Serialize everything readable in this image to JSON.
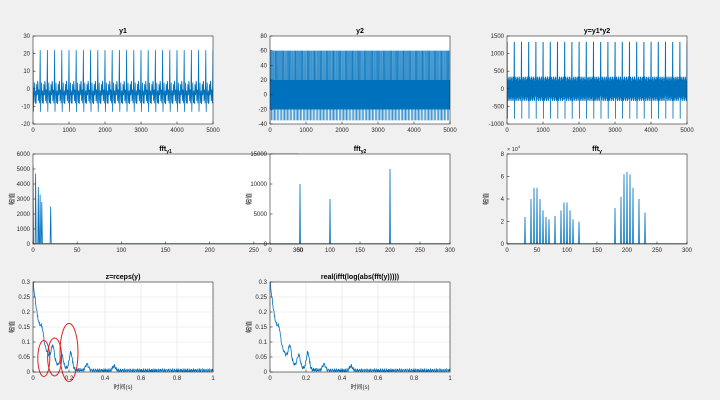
{
  "figure": {
    "background": "#f0f0f0",
    "line_color": "#0072bd",
    "highlight_color": "#e02020",
    "grid_color": "#e3e3e3"
  },
  "chart_data": [
    {
      "id": "y1",
      "type": "line",
      "title": "y1",
      "title_sub": "",
      "xlim": [
        0,
        5000
      ],
      "ylim": [
        -20,
        30
      ],
      "xticks": [
        0,
        1000,
        2000,
        3000,
        4000,
        5000
      ],
      "yticks": [
        -20,
        -10,
        0,
        10,
        20,
        30
      ],
      "ylabel": "",
      "xlabel": "",
      "grid": false,
      "signal": {
        "kind": "periodic_wave",
        "period": 200,
        "max": 22,
        "min": -13,
        "ripple": 4
      }
    },
    {
      "id": "y2",
      "type": "line",
      "title": "y2",
      "title_sub": "",
      "xlim": [
        0,
        5000
      ],
      "ylim": [
        -40,
        80
      ],
      "xticks": [
        0,
        1000,
        2000,
        3000,
        4000,
        5000
      ],
      "yticks": [
        -40,
        -20,
        0,
        20,
        40,
        60,
        80
      ],
      "ylabel": "",
      "xlabel": "",
      "grid": false,
      "signal": {
        "kind": "dense_band",
        "max": 60,
        "min": -35,
        "inner_max": 20,
        "inner_min": -20
      }
    },
    {
      "id": "y_product",
      "type": "line",
      "title": "y=y1*y2",
      "title_sub": "",
      "xlim": [
        0,
        5000
      ],
      "ylim": [
        -1000,
        1500
      ],
      "xticks": [
        0,
        1000,
        2000,
        3000,
        4000,
        5000
      ],
      "yticks": [
        -1000,
        -500,
        0,
        500,
        1000,
        1500
      ],
      "ylabel": "",
      "xlabel": "",
      "grid": false,
      "signal": {
        "kind": "spiky_band",
        "period": 200,
        "max": 1320,
        "min": -850,
        "band": 350
      }
    },
    {
      "id": "fft_y1",
      "type": "line",
      "title": "fft",
      "title_sub": "y1",
      "xlim": [
        0,
        300
      ],
      "ylim": [
        0,
        6000
      ],
      "xticks": [
        0,
        50,
        100,
        150,
        200,
        250,
        300
      ],
      "yticks": [
        0,
        1000,
        2000,
        3000,
        4000,
        5000,
        6000
      ],
      "ylabel": "幅值",
      "xlabel": "",
      "grid": false,
      "peaks": [
        [
          0,
          5200
        ],
        [
          3,
          4700
        ],
        [
          6,
          3800
        ],
        [
          8,
          3300
        ],
        [
          10,
          2800
        ],
        [
          20,
          2500
        ]
      ]
    },
    {
      "id": "fft_y2",
      "type": "line",
      "title": "fft",
      "title_sub": "y2",
      "xlim": [
        0,
        300
      ],
      "ylim": [
        0,
        15000
      ],
      "xticks": [
        0,
        50,
        100,
        150,
        200,
        250,
        300
      ],
      "yticks": [
        0,
        5000,
        10000,
        15000
      ],
      "ylabel": "幅值",
      "xlabel": "",
      "grid": false,
      "peaks": [
        [
          50,
          10000
        ],
        [
          100,
          7500
        ],
        [
          200,
          12500
        ]
      ]
    },
    {
      "id": "fft_y",
      "type": "line",
      "title": "fft",
      "title_sub": "y",
      "xlim": [
        0,
        300
      ],
      "ylim": [
        0,
        80000
      ],
      "xticks": [
        0,
        50,
        100,
        150,
        200,
        250,
        300
      ],
      "yticks": [
        0,
        20000,
        40000,
        60000,
        80000
      ],
      "ytick_labels": [
        "0",
        "2",
        "4",
        "6",
        "8"
      ],
      "yexponent_base": "× 10",
      "yexponent_power": "4",
      "ylabel": "幅值",
      "xlabel": "",
      "grid": false,
      "peaks": [
        [
          30,
          24000
        ],
        [
          40,
          40000
        ],
        [
          45,
          50000
        ],
        [
          50,
          50000
        ],
        [
          55,
          40000
        ],
        [
          60,
          30000
        ],
        [
          65,
          24000
        ],
        [
          70,
          22000
        ],
        [
          80,
          25000
        ],
        [
          90,
          30000
        ],
        [
          95,
          37000
        ],
        [
          100,
          37000
        ],
        [
          105,
          30000
        ],
        [
          110,
          22000
        ],
        [
          120,
          20000
        ],
        [
          180,
          32000
        ],
        [
          190,
          42000
        ],
        [
          195,
          62000
        ],
        [
          200,
          64000
        ],
        [
          205,
          62000
        ],
        [
          210,
          50000
        ],
        [
          220,
          40000
        ],
        [
          230,
          28000
        ]
      ]
    },
    {
      "id": "cepstrum_rceps",
      "type": "line",
      "title": "z=rceps(y)",
      "title_sub": "",
      "xlim": [
        0,
        1
      ],
      "ylim": [
        0,
        0.3
      ],
      "xticks": [
        0,
        0.2,
        0.4,
        0.6,
        0.8,
        1
      ],
      "yticks": [
        0,
        0.05,
        0.1,
        0.15,
        0.2,
        0.25,
        0.3
      ],
      "ylabel": "幅值",
      "xlabel": "时间(s)",
      "grid": true,
      "signal": {
        "kind": "cepstrum",
        "start": 0.3,
        "decay": 0.05,
        "floor": 0.012,
        "bumps": [
          [
            0.05,
            0.035
          ],
          [
            0.11,
            0.05
          ],
          [
            0.16,
            0.04
          ],
          [
            0.21,
            0.055
          ],
          [
            0.3,
            0.02
          ],
          [
            0.45,
            0.015
          ]
        ]
      },
      "highlights": [
        {
          "cx": 0.06,
          "cy": 0.045
        },
        {
          "cx": 0.12,
          "cy": 0.05
        },
        {
          "cx": 0.2,
          "cy": 0.065
        }
      ]
    },
    {
      "id": "cepstrum_real_ifft",
      "type": "line",
      "title": "real(ifft(log(abs(fft(y)))))",
      "title_sub": "",
      "xlim": [
        0,
        1
      ],
      "ylim": [
        0,
        0.3
      ],
      "xticks": [
        0,
        0.2,
        0.4,
        0.6,
        0.8,
        1
      ],
      "yticks": [
        0,
        0.05,
        0.1,
        0.15,
        0.2,
        0.25,
        0.3
      ],
      "ylabel": "幅值",
      "xlabel": "时间(s)",
      "grid": true,
      "signal": {
        "kind": "cepstrum",
        "start": 0.3,
        "decay": 0.05,
        "floor": 0.012,
        "bumps": [
          [
            0.05,
            0.035
          ],
          [
            0.11,
            0.05
          ],
          [
            0.16,
            0.04
          ],
          [
            0.21,
            0.055
          ],
          [
            0.3,
            0.02
          ],
          [
            0.45,
            0.015
          ]
        ]
      },
      "highlights": []
    }
  ]
}
